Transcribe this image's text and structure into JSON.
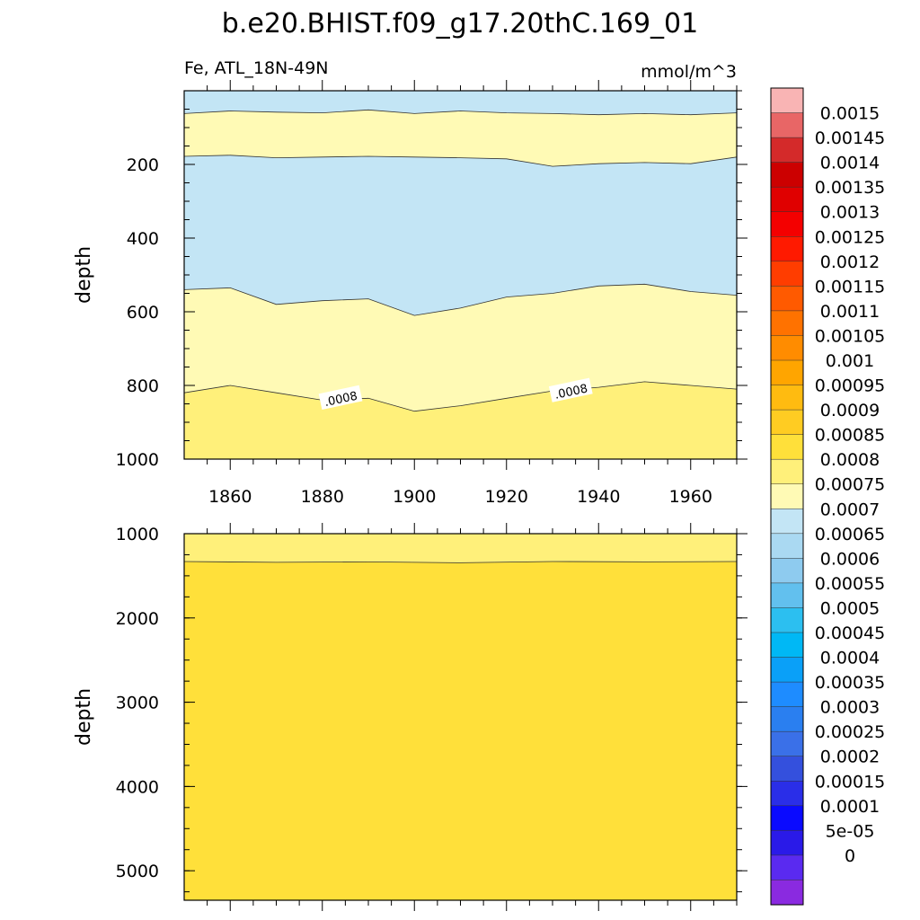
{
  "title": "b.e20.BHIST.f09_g17.20thC.169_01",
  "subtitle_left": "Fe, ATL_18N-49N",
  "subtitle_right": "mmol/m^3",
  "colorbar": {
    "labels": [
      "0.0015",
      "0.00145",
      "0.0014",
      "0.00135",
      "0.0013",
      "0.00125",
      "0.0012",
      "0.00115",
      "0.0011",
      "0.00105",
      "0.001",
      "0.00095",
      "0.0009",
      "0.00085",
      "0.0008",
      "0.00075",
      "0.0007",
      "0.00065",
      "0.0006",
      "0.00055",
      "0.0005",
      "0.00045",
      "0.0004",
      "0.00035",
      "0.0003",
      "0.00025",
      "0.0002",
      "0.00015",
      "0.0001",
      "5e-05",
      "0"
    ],
    "colors": [
      "#f9b4b4",
      "#e86666",
      "#d42a2a",
      "#cc0000",
      "#e00000",
      "#f40000",
      "#ff1a00",
      "#ff3d00",
      "#ff5a00",
      "#ff7200",
      "#ff8c00",
      "#ffa500",
      "#ffbb10",
      "#ffcc22",
      "#ffe03a",
      "#fff07a",
      "#fffab5",
      "#c3e5f5",
      "#aad9f2",
      "#8ecbef",
      "#62c0ee",
      "#2cbff0",
      "#00b8f5",
      "#0aa0f8",
      "#1e8cff",
      "#2a7ff0",
      "#3a70e8",
      "#3450dd",
      "#2a2ee8",
      "#0a0aff",
      "#2a1ae8",
      "#5a2af0",
      "#8a2ae0"
    ]
  },
  "chart_data": [
    {
      "type": "contour",
      "panel": "upper",
      "x": [
        1850,
        1970
      ],
      "xticks": [
        1860,
        1880,
        1900,
        1920,
        1940,
        1960
      ],
      "ylabel": "depth",
      "ylim": [
        1000,
        0
      ],
      "yticks": [
        200,
        400,
        600,
        800,
        1000
      ],
      "contour_labels": [
        {
          "text": ".0008",
          "x": 1884,
          "y": 835
        },
        {
          "text": ".0008",
          "x": 1934,
          "y": 815
        }
      ],
      "bands": [
        {
          "range": "0.0007-0.00075",
          "x": [
            1850,
            1860,
            1870,
            1880,
            1890,
            1900,
            1910,
            1920,
            1930,
            1940,
            1950,
            1960,
            1970
          ],
          "top": [
            0,
            0,
            0,
            0,
            0,
            0,
            0,
            0,
            0,
            0,
            0,
            0,
            0
          ],
          "bottom": [
            62,
            55,
            58,
            60,
            52,
            62,
            55,
            60,
            62,
            65,
            62,
            65,
            60
          ]
        },
        {
          "range": "0.00075-0.0008",
          "x": [
            1850,
            1860,
            1870,
            1880,
            1890,
            1900,
            1910,
            1920,
            1930,
            1940,
            1950,
            1960,
            1970
          ],
          "top": [
            62,
            55,
            58,
            60,
            52,
            62,
            55,
            60,
            62,
            65,
            62,
            65,
            60
          ],
          "bottom": [
            178,
            175,
            182,
            180,
            178,
            180,
            182,
            185,
            205,
            198,
            195,
            198,
            180
          ]
        },
        {
          "range": "0.0007-0.00075",
          "x": [
            1850,
            1860,
            1870,
            1880,
            1890,
            1900,
            1910,
            1920,
            1930,
            1940,
            1950,
            1960,
            1970
          ],
          "top": [
            178,
            175,
            182,
            180,
            178,
            180,
            182,
            185,
            205,
            198,
            195,
            198,
            180
          ],
          "bottom": [
            540,
            535,
            580,
            570,
            565,
            610,
            590,
            560,
            550,
            530,
            525,
            545,
            555
          ]
        },
        {
          "range": "0.00075-0.0008",
          "x": [
            1850,
            1860,
            1870,
            1880,
            1890,
            1900,
            1910,
            1920,
            1930,
            1940,
            1950,
            1960,
            1970
          ],
          "top": [
            540,
            535,
            580,
            570,
            565,
            610,
            590,
            560,
            550,
            530,
            525,
            545,
            555
          ],
          "bottom": [
            820,
            800,
            820,
            840,
            835,
            870,
            855,
            835,
            815,
            805,
            790,
            800,
            810
          ]
        },
        {
          "range": "0.0008-0.00085",
          "x": [
            1850,
            1860,
            1870,
            1880,
            1890,
            1900,
            1910,
            1920,
            1930,
            1940,
            1950,
            1960,
            1970
          ],
          "top": [
            820,
            800,
            820,
            840,
            835,
            870,
            855,
            835,
            815,
            805,
            790,
            800,
            810
          ],
          "bottom": [
            1000,
            1000,
            1000,
            1000,
            1000,
            1000,
            1000,
            1000,
            1000,
            1000,
            1000,
            1000,
            1000
          ]
        }
      ]
    },
    {
      "type": "contour",
      "panel": "lower",
      "x": [
        1850,
        1970
      ],
      "ylabel": "depth",
      "ylim": [
        5350,
        1000
      ],
      "yticks": [
        1000,
        2000,
        3000,
        4000,
        5000
      ],
      "bands": [
        {
          "range": "0.0008-0.00085",
          "x": [
            1850,
            1870,
            1890,
            1910,
            1930,
            1950,
            1970
          ],
          "top": [
            1000,
            1000,
            1000,
            1000,
            1000,
            1000,
            1000
          ],
          "bottom": [
            1330,
            1340,
            1335,
            1345,
            1330,
            1335,
            1330
          ]
        },
        {
          "range": "0.00085-0.0009",
          "x": [
            1850,
            1870,
            1890,
            1910,
            1930,
            1950,
            1970
          ],
          "top": [
            1330,
            1340,
            1335,
            1345,
            1330,
            1335,
            1330
          ],
          "bottom": [
            5350,
            5350,
            5350,
            5350,
            5350,
            5350,
            5350
          ]
        }
      ]
    }
  ],
  "colors": {
    "light_blue": "#c3e5f5",
    "pale_yellow": "#fffab5",
    "yellow": "#fff07a",
    "gold": "#ffe03a"
  }
}
